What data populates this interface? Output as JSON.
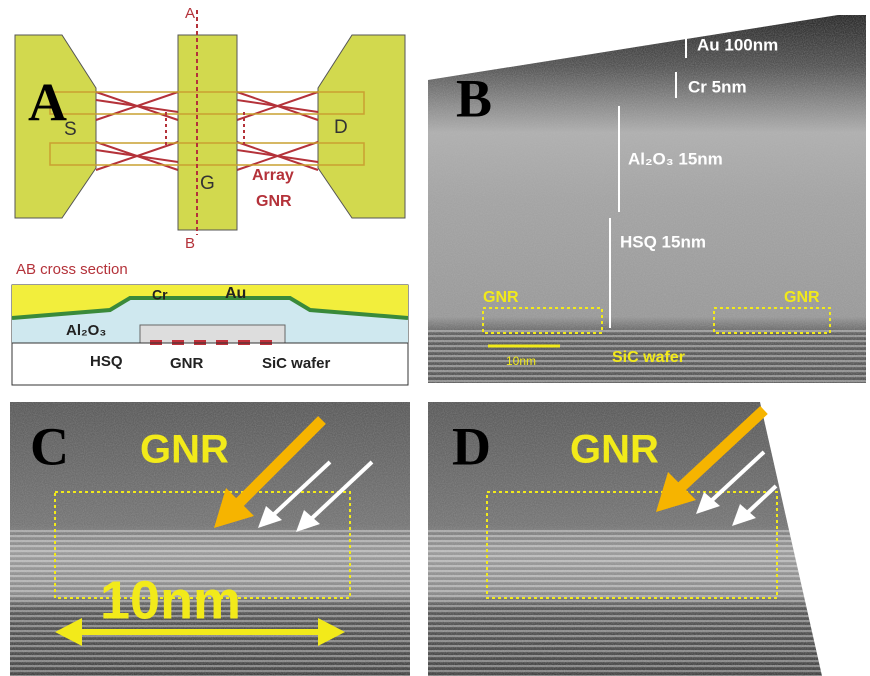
{
  "panel_a": {
    "label": "A",
    "source": "S",
    "drain": "D",
    "gate": "G",
    "cut_top": "A",
    "cut_bottom": "B",
    "array_line1": "Array",
    "array_line2": "GNR",
    "cross_section_title": "AB cross section",
    "cr": "Cr",
    "au": "Au",
    "al2o3": "Al₂O₃",
    "hsq": "HSQ",
    "gnr": "GNR",
    "substrate": "SiC wafer"
  },
  "panel_b": {
    "label": "B",
    "au": "Au 100nm",
    "cr": "Cr 5nm",
    "al2o3": "Al₂O₃ 15nm",
    "hsq": "HSQ 15nm",
    "gnr_left": "GNR",
    "gnr_right": "GNR",
    "scale_bar": "10nm",
    "substrate": "SiC wafer"
  },
  "panel_c": {
    "label": "C",
    "gnr": "GNR",
    "scale_bar": "10nm"
  },
  "panel_d": {
    "label": "D",
    "gnr": "GNR"
  }
}
